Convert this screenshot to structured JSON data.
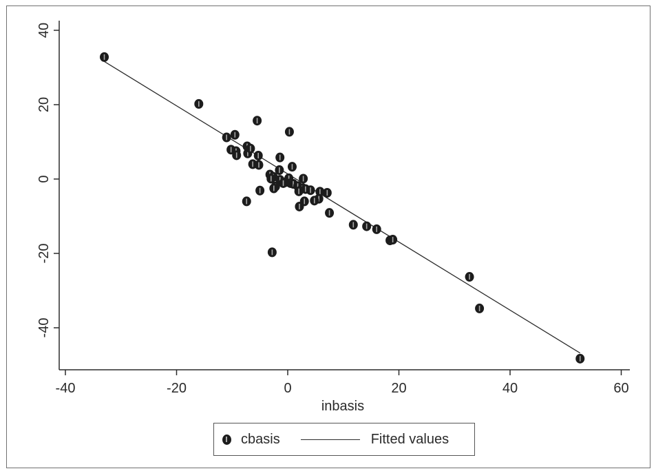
{
  "chart_data": {
    "type": "scatter",
    "xlabel": "inbasis",
    "ylabel": "",
    "xlim": [
      -42,
      62
    ],
    "ylim": [
      -50,
      42
    ],
    "xticks": [
      -40,
      -20,
      0,
      20,
      40,
      60
    ],
    "yticks": [
      -40,
      -20,
      0,
      20,
      40
    ],
    "x_tick_labels": [
      "-40",
      "-20",
      "0",
      "20",
      "40",
      "60"
    ],
    "y_tick_labels": [
      "-40",
      "-20",
      "0",
      "20",
      "40"
    ],
    "grid": false,
    "legend_position": "bottom",
    "series": [
      {
        "name": "cbasis",
        "kind": "scatter",
        "color": "#1c1c1c",
        "points": [
          [
            -33,
            32.8
          ],
          [
            -16,
            20.2
          ],
          [
            -11,
            11.2
          ],
          [
            -9.5,
            11.9
          ],
          [
            -5.5,
            15.7
          ],
          [
            0.3,
            12.7
          ],
          [
            -10.2,
            7.9
          ],
          [
            -9.3,
            7.5
          ],
          [
            -9.2,
            6.4
          ],
          [
            -7.3,
            8.8
          ],
          [
            -7.2,
            6.9
          ],
          [
            -6.7,
            8.2
          ],
          [
            -5.3,
            6.3
          ],
          [
            -6.3,
            4.0
          ],
          [
            -5.2,
            3.8
          ],
          [
            -1.4,
            5.8
          ],
          [
            0.8,
            3.3
          ],
          [
            -1.5,
            2.4
          ],
          [
            -3.2,
            1.2
          ],
          [
            -2.6,
            0.6
          ],
          [
            -3.0,
            0.1
          ],
          [
            -1.4,
            -0.2
          ],
          [
            -0.3,
            -0.8
          ],
          [
            0.2,
            0.2
          ],
          [
            0.5,
            -1.1
          ],
          [
            1.0,
            -1.3
          ],
          [
            -0.8,
            -1.1
          ],
          [
            -2.2,
            -2.0
          ],
          [
            -2.5,
            -2.5
          ],
          [
            1.8,
            -1.9
          ],
          [
            2.6,
            -2.5
          ],
          [
            2.8,
            0.1
          ],
          [
            2.0,
            -3.3
          ],
          [
            3.2,
            -2.7
          ],
          [
            4.1,
            -3.0
          ],
          [
            5.8,
            -3.4
          ],
          [
            5.6,
            -5.3
          ],
          [
            4.8,
            -5.8
          ],
          [
            3.0,
            -6.0
          ],
          [
            2.1,
            -7.4
          ],
          [
            7.1,
            -3.7
          ],
          [
            7.5,
            -9.1
          ],
          [
            -5.0,
            -3.1
          ],
          [
            -7.4,
            -6.0
          ],
          [
            -2.8,
            -19.7
          ],
          [
            11.8,
            -12.3
          ],
          [
            14.2,
            -12.7
          ],
          [
            16.0,
            -13.5
          ],
          [
            18.4,
            -16.5
          ],
          [
            18.9,
            -16.3
          ],
          [
            32.7,
            -26.3
          ],
          [
            34.5,
            -34.8
          ],
          [
            52.6,
            -48.3
          ]
        ]
      },
      {
        "name": "Fitted values",
        "kind": "line",
        "color": "#2a2a2a",
        "x": [
          -33,
          52.6
        ],
        "y": [
          31.6,
          -46.8
        ]
      }
    ]
  },
  "legend": {
    "items": [
      "cbasis",
      "Fitted values"
    ]
  }
}
